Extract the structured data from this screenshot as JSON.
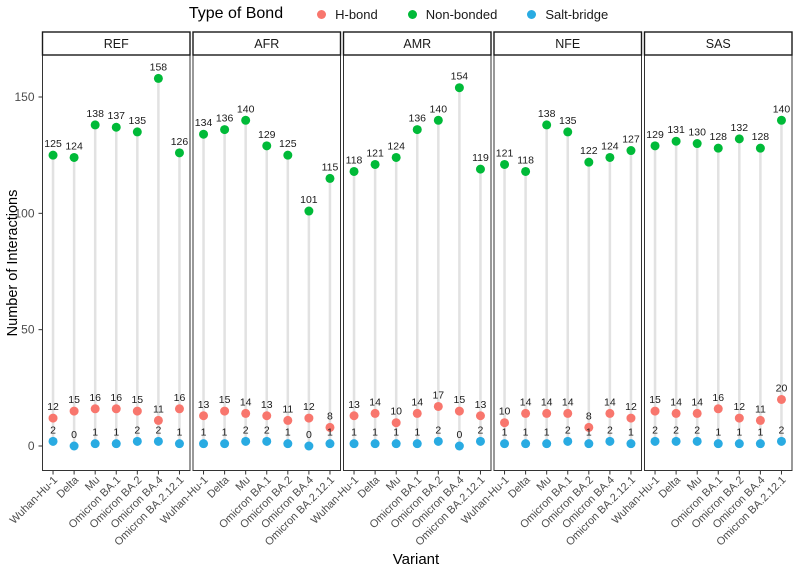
{
  "legend": {
    "title": "Type of Bond"
  },
  "chart_data": {
    "type": "scatter",
    "subtype": "faceted-lollipop-dot-plot",
    "title": "",
    "legend_title": "Type of Bond",
    "legend_position": "top-center",
    "xlabel": "Variant",
    "ylabel": "Number of Interactions",
    "yticks": [
      0,
      50,
      100,
      150
    ],
    "ylim": [
      -10,
      168
    ],
    "grid": "off",
    "stem_color": "#e2e2e2",
    "label_color": "#1a1a1a",
    "axis_text_color": "#4d4d4d",
    "panel_border_color": "#333333",
    "categories": [
      "Wuhan-Hu-1",
      "Delta",
      "Mu",
      "Omicron BA.1",
      "Omicron BA.2",
      "Omicron BA.4",
      "Omicron BA.2.12.1"
    ],
    "series": [
      {
        "name": "H-bond",
        "color": "#F8766D"
      },
      {
        "name": "Non-bonded",
        "color": "#00BA38"
      },
      {
        "name": "Salt-bridge",
        "color": "#29ABE2"
      }
    ],
    "facets": [
      {
        "name": "REF",
        "values": {
          "Non-bonded": [
            125,
            124,
            138,
            137,
            135,
            158,
            126
          ],
          "H-bond": [
            12,
            15,
            16,
            16,
            15,
            11,
            16
          ],
          "Salt-bridge": [
            2,
            0,
            1,
            1,
            2,
            2,
            1
          ]
        }
      },
      {
        "name": "AFR",
        "values": {
          "Non-bonded": [
            134,
            136,
            140,
            129,
            125,
            101,
            115
          ],
          "H-bond": [
            13,
            15,
            14,
            13,
            11,
            12,
            8
          ],
          "Salt-bridge": [
            1,
            1,
            2,
            2,
            1,
            0,
            1
          ]
        }
      },
      {
        "name": "AMR",
        "values": {
          "Non-bonded": [
            118,
            121,
            124,
            136,
            140,
            154,
            119
          ],
          "H-bond": [
            13,
            14,
            10,
            14,
            17,
            15,
            13
          ],
          "Salt-bridge": [
            1,
            1,
            1,
            1,
            2,
            0,
            2
          ]
        }
      },
      {
        "name": "NFE",
        "values": {
          "Non-bonded": [
            121,
            118,
            138,
            135,
            122,
            124,
            127
          ],
          "H-bond": [
            10,
            14,
            14,
            14,
            8,
            14,
            12
          ],
          "Salt-bridge": [
            1,
            1,
            1,
            2,
            1,
            2,
            1
          ]
        }
      },
      {
        "name": "SAS",
        "values": {
          "Non-bonded": [
            129,
            131,
            130,
            128,
            132,
            128,
            140
          ],
          "H-bond": [
            15,
            14,
            14,
            16,
            12,
            11,
            20
          ],
          "Salt-bridge": [
            2,
            2,
            2,
            1,
            1,
            1,
            2
          ]
        }
      }
    ]
  }
}
